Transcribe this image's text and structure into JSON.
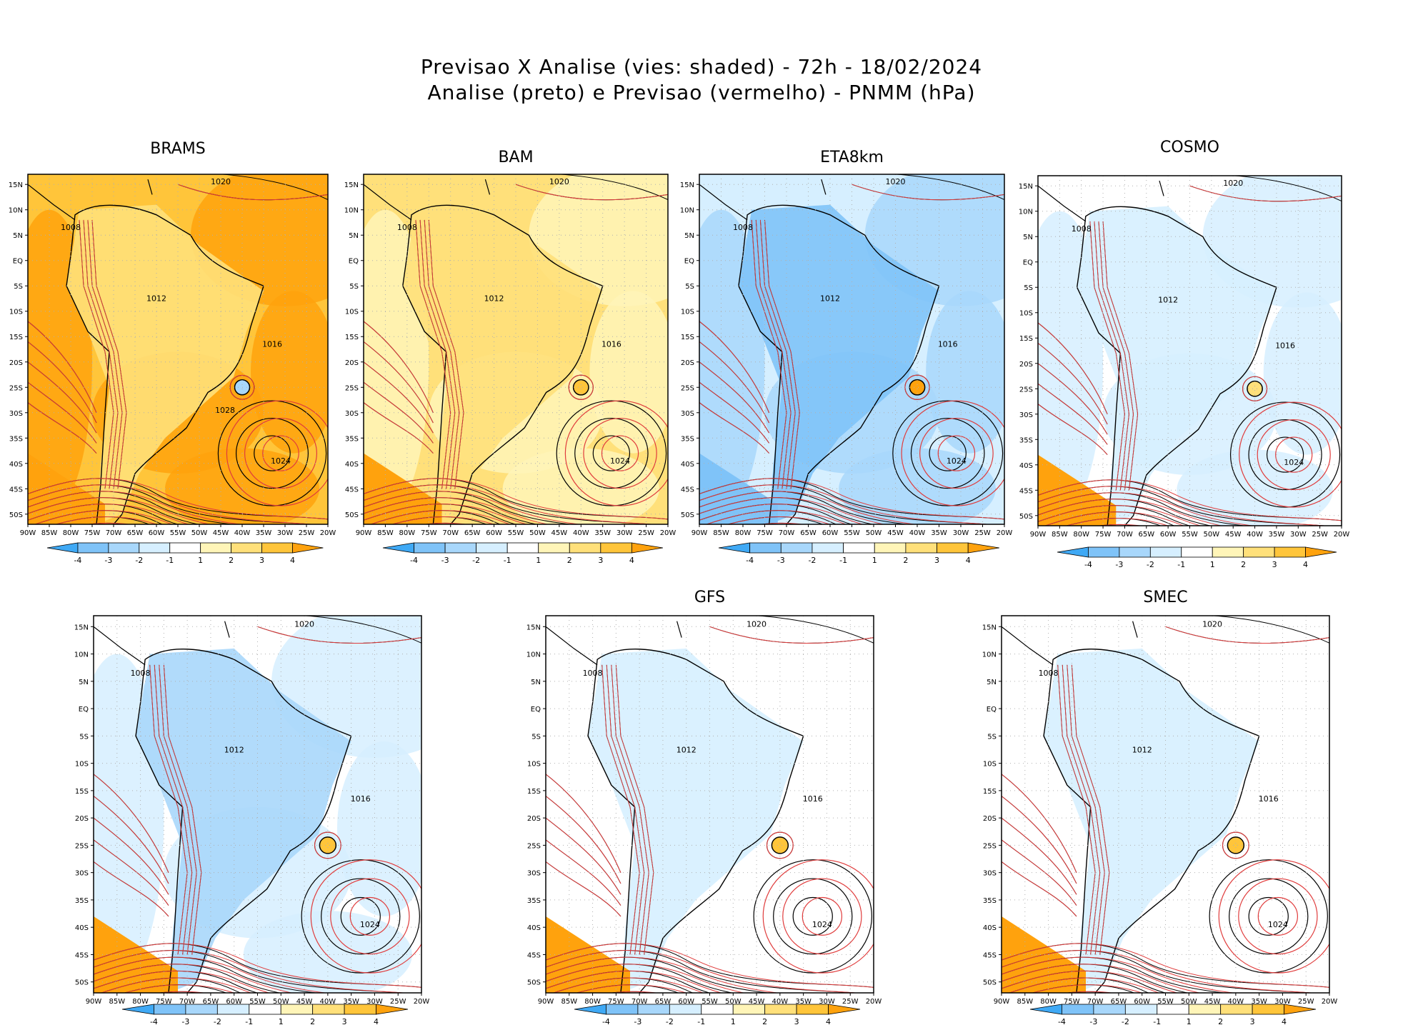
{
  "figure": {
    "title_line1": "Previsao X Analise (vies: shaded) - 72h - 18/02/2024",
    "title_line2": "Analise (preto) e Previsao (vermelho) - PNMM (hPa)"
  },
  "colors": {
    "neg4": "#3fa9f5",
    "neg3": "#7fc3f8",
    "neg2": "#a8d7fb",
    "neg1": "#d6efff",
    "zero": "#ffffff",
    "pos1": "#fff5b8",
    "pos2": "#ffe07a",
    "pos3": "#ffc53a",
    "pos4": "#ffa20d",
    "analysis_line": "#000000",
    "forecast_line": "#e03c3c",
    "grid": "#b0b0b0"
  },
  "chart_data": [
    {
      "type": "heatmap",
      "name": "BRAMS",
      "title": "BRAMS",
      "bias_field": "mostly positive 2 to 4 hPa",
      "xlim": [
        -90,
        -20
      ],
      "ylim": [
        -52,
        17
      ],
      "x_ticks": [
        "90W",
        "85W",
        "80W",
        "75W",
        "70W",
        "65W",
        "60W",
        "55W",
        "50W",
        "45W",
        "40W",
        "35W",
        "30W",
        "25W",
        "20W"
      ],
      "y_ticks": [
        "15N",
        "10N",
        "5N",
        "EQ",
        "5S",
        "10S",
        "15S",
        "20S",
        "25S",
        "30S",
        "35S",
        "40S",
        "45S",
        "50S"
      ],
      "colorbar": [
        "-4",
        "-3",
        "-2",
        "-1",
        "1",
        "2",
        "3",
        "4"
      ],
      "isobar_labels": [
        "1008",
        "1012",
        "1016",
        "1020",
        "1024",
        "1028"
      ]
    },
    {
      "type": "heatmap",
      "name": "BAM",
      "title": "BAM",
      "bias_field": "mostly positive 1 to 3 hPa",
      "xlim": [
        -90,
        -20
      ],
      "ylim": [
        -52,
        17
      ],
      "x_ticks": [
        "90W",
        "85W",
        "80W",
        "75W",
        "70W",
        "65W",
        "60W",
        "55W",
        "50W",
        "45W",
        "40W",
        "35W",
        "30W",
        "25W",
        "20W"
      ],
      "y_ticks": [
        "15N",
        "10N",
        "5N",
        "EQ",
        "5S",
        "10S",
        "15S",
        "20S",
        "25S",
        "30S",
        "35S",
        "40S",
        "45S",
        "50S"
      ],
      "colorbar": [
        "-4",
        "-3",
        "-2",
        "-1",
        "1",
        "2",
        "3",
        "4"
      ],
      "isobar_labels": [
        "1008",
        "1012",
        "1016",
        "1020",
        "1024"
      ]
    },
    {
      "type": "heatmap",
      "name": "ETA8km",
      "title": "ETA8km",
      "bias_field": "mostly negative -1 to -4 hPa",
      "xlim": [
        -90,
        -20
      ],
      "ylim": [
        -52,
        17
      ],
      "x_ticks": [
        "90W",
        "85W",
        "80W",
        "75W",
        "70W",
        "65W",
        "60W",
        "55W",
        "50W",
        "45W",
        "40W",
        "35W",
        "30W",
        "25W",
        "20W"
      ],
      "y_ticks": [
        "15N",
        "10N",
        "5N",
        "EQ",
        "5S",
        "10S",
        "15S",
        "20S",
        "25S",
        "30S",
        "35S",
        "40S",
        "45S",
        "50S"
      ],
      "colorbar": [
        "-4",
        "-3",
        "-2",
        "-1",
        "1",
        "2",
        "3",
        "4"
      ],
      "isobar_labels": [
        "1008",
        "1012",
        "1016",
        "1020",
        "1024"
      ]
    },
    {
      "type": "heatmap",
      "name": "COSMO",
      "title": "COSMO",
      "bias_field": "mixed, near zero",
      "xlim": [
        -90,
        -20
      ],
      "ylim": [
        -52,
        17
      ],
      "x_ticks": [
        "90W",
        "85W",
        "80W",
        "75W",
        "70W",
        "65W",
        "60W",
        "55W",
        "50W",
        "45W",
        "40W",
        "35W",
        "30W",
        "25W",
        "20W"
      ],
      "y_ticks": [
        "15N",
        "10N",
        "5N",
        "EQ",
        "5S",
        "10S",
        "15S",
        "20S",
        "25S",
        "30S",
        "35S",
        "40S",
        "45S",
        "50S"
      ],
      "colorbar": [
        "-4",
        "-3",
        "-2",
        "-1",
        "1",
        "2",
        "3",
        "4"
      ],
      "isobar_labels": [
        "1008",
        "1012",
        "1016",
        "1020",
        "1024"
      ]
    },
    {
      "type": "heatmap",
      "name": "UNTITLED",
      "title": "",
      "bias_field": "mixed, near zero",
      "xlim": [
        -90,
        -20
      ],
      "ylim": [
        -52,
        17
      ],
      "x_ticks": [
        "90W",
        "85W",
        "80W",
        "75W",
        "70W",
        "65W",
        "60W",
        "55W",
        "50W",
        "45W",
        "40W",
        "35W",
        "30W",
        "25W",
        "20W"
      ],
      "y_ticks": [
        "15N",
        "10N",
        "5N",
        "EQ",
        "5S",
        "10S",
        "15S",
        "20S",
        "25S",
        "30S",
        "35S",
        "40S",
        "45S",
        "50S"
      ],
      "colorbar": [
        "-4",
        "-3",
        "-2",
        "-1",
        "1",
        "2",
        "3",
        "4"
      ],
      "isobar_labels": [
        "1008",
        "1012",
        "1016",
        "1020",
        "1024"
      ]
    },
    {
      "type": "heatmap",
      "name": "GFS",
      "title": "GFS",
      "bias_field": "mixed, near zero",
      "xlim": [
        -90,
        -20
      ],
      "ylim": [
        -52,
        17
      ],
      "x_ticks": [
        "90W",
        "85W",
        "80W",
        "75W",
        "70W",
        "65W",
        "60W",
        "55W",
        "50W",
        "45W",
        "40W",
        "35W",
        "30W",
        "25W",
        "20W"
      ],
      "y_ticks": [
        "15N",
        "10N",
        "5N",
        "EQ",
        "5S",
        "10S",
        "15S",
        "20S",
        "25S",
        "30S",
        "35S",
        "40S",
        "45S",
        "50S"
      ],
      "colorbar": [
        "-4",
        "-3",
        "-2",
        "-1",
        "1",
        "2",
        "3",
        "4"
      ],
      "isobar_labels": [
        "1008",
        "1012",
        "1016",
        "1020",
        "1024"
      ]
    },
    {
      "type": "heatmap",
      "name": "SMEC",
      "title": "SMEC",
      "bias_field": "mixed, near zero",
      "xlim": [
        -90,
        -20
      ],
      "ylim": [
        -52,
        17
      ],
      "x_ticks": [
        "90W",
        "85W",
        "80W",
        "75W",
        "70W",
        "65W",
        "60W",
        "55W",
        "50W",
        "45W",
        "40W",
        "35W",
        "30W",
        "25W",
        "20W"
      ],
      "y_ticks": [
        "15N",
        "10N",
        "5N",
        "EQ",
        "5S",
        "10S",
        "15S",
        "20S",
        "25S",
        "30S",
        "35S",
        "40S",
        "45S",
        "50S"
      ],
      "colorbar": [
        "-4",
        "-3",
        "-2",
        "-1",
        "1",
        "2",
        "3",
        "4"
      ],
      "isobar_labels": [
        "1008",
        "1012",
        "1016",
        "1020",
        "1024"
      ]
    }
  ]
}
